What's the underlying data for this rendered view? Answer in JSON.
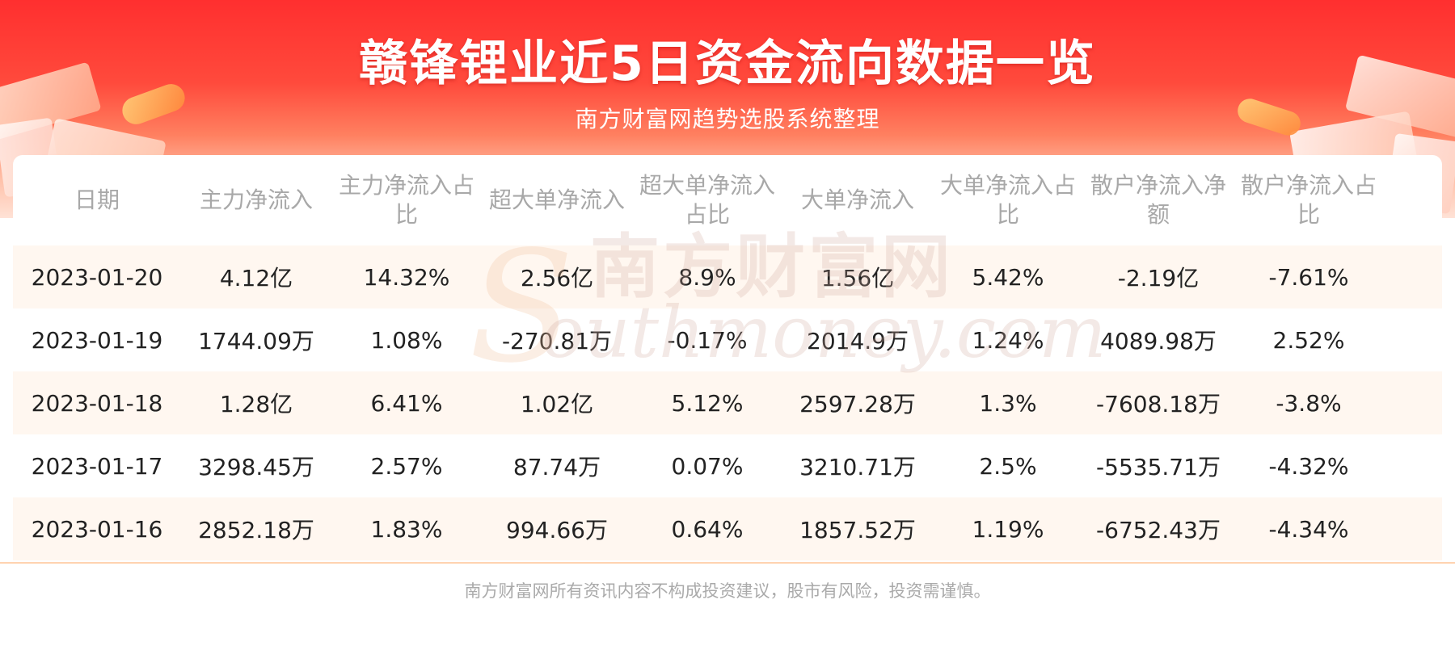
{
  "title": "赣锋锂业近5日资金流向数据一览",
  "subtitle": "南方财富网趋势选股系统整理",
  "watermark": {
    "cn": "南方财富网",
    "en": "outhmoney.com",
    "s": "S"
  },
  "disclaimer": "南方财富网所有资讯内容不构成投资建议，股市有风险，投资需谨慎。",
  "colors": {
    "banner_red": "#ff2f2f",
    "row_alt": "#fff7f0",
    "header_text": "#a8a8a8",
    "body_text": "#222222"
  },
  "chart_data": {
    "type": "table",
    "columns": [
      "日期",
      "主力净流入",
      "主力净流入占比",
      "超大单净流入",
      "超大单净流入占比",
      "大单净流入",
      "大单净流入占比",
      "散户净流入净额",
      "散户净流入占比"
    ],
    "rows": [
      [
        "2023-01-20",
        "4.12亿",
        "14.32%",
        "2.56亿",
        "8.9%",
        "1.56亿",
        "5.42%",
        "-2.19亿",
        "-7.61%"
      ],
      [
        "2023-01-19",
        "1744.09万",
        "1.08%",
        "-270.81万",
        "-0.17%",
        "2014.9万",
        "1.24%",
        "4089.98万",
        "2.52%"
      ],
      [
        "2023-01-18",
        "1.28亿",
        "6.41%",
        "1.02亿",
        "5.12%",
        "2597.28万",
        "1.3%",
        "-7608.18万",
        "-3.8%"
      ],
      [
        "2023-01-17",
        "3298.45万",
        "2.57%",
        "87.74万",
        "0.07%",
        "3210.71万",
        "2.5%",
        "-5535.71万",
        "-4.32%"
      ],
      [
        "2023-01-16",
        "2852.18万",
        "1.83%",
        "994.66万",
        "0.64%",
        "1857.52万",
        "1.19%",
        "-6752.43万",
        "-4.34%"
      ]
    ]
  }
}
